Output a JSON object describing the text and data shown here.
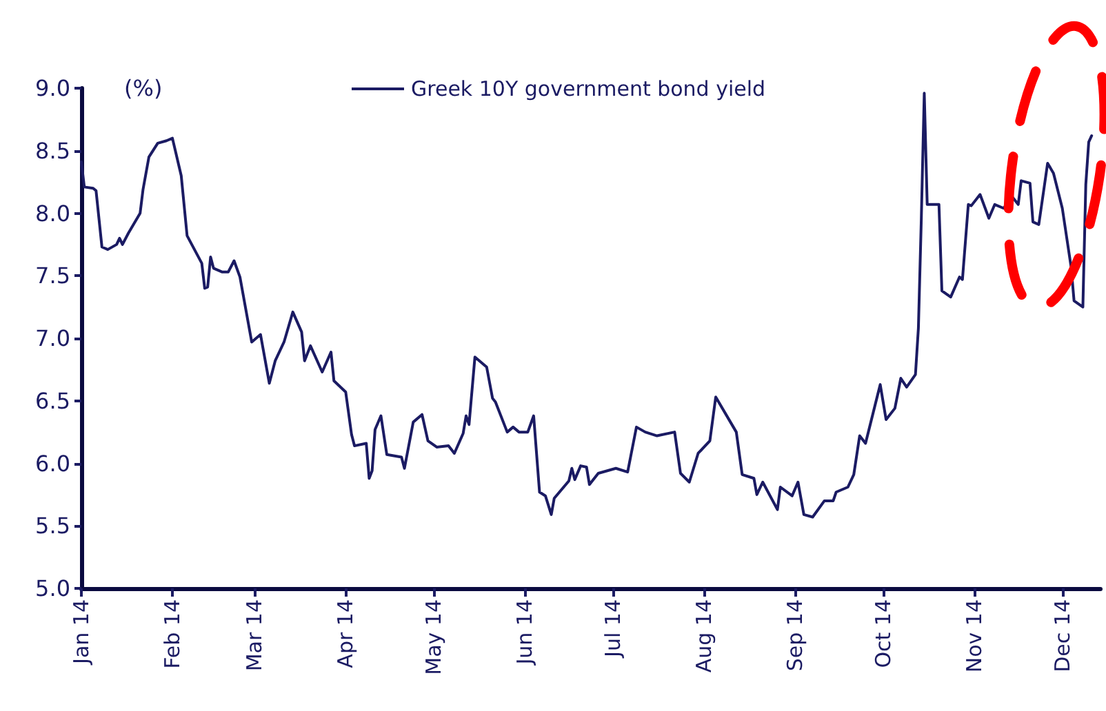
{
  "chart_data": {
    "type": "line",
    "ylabel": "(%)",
    "legend": "top",
    "grid": false,
    "marker": "none",
    "line_style": "solid",
    "xlim": [
      "2014-01-01",
      "2014-12-14"
    ],
    "xticks": [
      {
        "value": "2014-01-01",
        "label": "Jan 14"
      },
      {
        "value": "2014-02-01",
        "label": "Feb 14"
      },
      {
        "value": "2014-03-01",
        "label": "Mar 14"
      },
      {
        "value": "2014-04-01",
        "label": "Apr 14"
      },
      {
        "value": "2014-05-01",
        "label": "May 14"
      },
      {
        "value": "2014-06-01",
        "label": "Jun 14"
      },
      {
        "value": "2014-07-01",
        "label": "Jul 14"
      },
      {
        "value": "2014-08-01",
        "label": "Aug 14"
      },
      {
        "value": "2014-09-01",
        "label": "Sep 14"
      },
      {
        "value": "2014-10-01",
        "label": "Oct 14"
      },
      {
        "value": "2014-11-01",
        "label": "Nov 14"
      },
      {
        "value": "2014-12-01",
        "label": "Dec 14"
      }
    ],
    "ylim": [
      5,
      9
    ],
    "yticks": [
      {
        "value": 5,
        "label": "5.0"
      },
      {
        "value": 5.5,
        "label": "5.5"
      },
      {
        "value": 6,
        "label": "6.0"
      },
      {
        "value": 6.5,
        "label": "6.5"
      },
      {
        "value": 7,
        "label": "7.0"
      },
      {
        "value": 7.5,
        "label": "7.5"
      },
      {
        "value": 8,
        "label": "8.0"
      },
      {
        "value": 8.5,
        "label": "8.5"
      },
      {
        "value": 9,
        "label": "9.0"
      }
    ],
    "x": [
      "2014-01-01",
      "2014-01-02",
      "2014-01-05",
      "2014-01-06",
      "2014-01-08",
      "2014-01-10",
      "2014-01-13",
      "2014-01-14",
      "2014-01-15",
      "2014-01-17",
      "2014-01-21",
      "2014-01-22",
      "2014-01-24",
      "2014-01-27",
      "2014-01-30",
      "2014-02-01",
      "2014-02-04",
      "2014-02-06",
      "2014-02-11",
      "2014-02-12",
      "2014-02-13",
      "2014-02-14",
      "2014-02-15",
      "2014-02-18",
      "2014-02-20",
      "2014-02-22",
      "2014-02-24",
      "2014-02-28",
      "2014-03-03",
      "2014-03-06",
      "2014-03-08",
      "2014-03-11",
      "2014-03-14",
      "2014-03-17",
      "2014-03-18",
      "2014-03-20",
      "2014-03-24",
      "2014-03-27",
      "2014-03-28",
      "2014-04-01",
      "2014-04-03",
      "2014-04-04",
      "2014-04-08",
      "2014-04-09",
      "2014-04-10",
      "2014-04-11",
      "2014-04-13",
      "2014-04-15",
      "2014-04-20",
      "2014-04-21",
      "2014-04-24",
      "2014-04-27",
      "2014-04-29",
      "2014-05-02",
      "2014-05-06",
      "2014-05-08",
      "2014-05-11",
      "2014-05-12",
      "2014-05-13",
      "2014-05-15",
      "2014-05-19",
      "2014-05-21",
      "2014-05-22",
      "2014-05-26",
      "2014-05-28",
      "2014-05-30",
      "2014-06-02",
      "2014-06-04",
      "2014-06-06",
      "2014-06-08",
      "2014-06-10",
      "2014-06-11",
      "2014-06-16",
      "2014-06-17",
      "2014-06-18",
      "2014-06-20",
      "2014-06-22",
      "2014-06-23",
      "2014-06-26",
      "2014-07-02",
      "2014-07-06",
      "2014-07-09",
      "2014-07-12",
      "2014-07-16",
      "2014-07-22",
      "2014-07-24",
      "2014-07-27",
      "2014-07-30",
      "2014-08-03",
      "2014-08-05",
      "2014-08-11",
      "2014-08-12",
      "2014-08-14",
      "2014-08-18",
      "2014-08-19",
      "2014-08-21",
      "2014-08-26",
      "2014-08-27",
      "2014-08-31",
      "2014-09-02",
      "2014-09-04",
      "2014-09-07",
      "2014-09-11",
      "2014-09-14",
      "2014-09-15",
      "2014-09-19",
      "2014-09-21",
      "2014-09-23",
      "2014-09-25",
      "2014-09-30",
      "2014-10-01",
      "2014-10-02",
      "2014-10-05",
      "2014-10-07",
      "2014-10-09",
      "2014-10-12",
      "2014-10-13",
      "2014-10-14",
      "2014-10-15",
      "2014-10-16",
      "2014-10-20",
      "2014-10-21",
      "2014-10-24",
      "2014-10-27",
      "2014-10-28",
      "2014-10-30",
      "2014-10-31",
      "2014-11-03",
      "2014-11-06",
      "2014-11-08",
      "2014-11-11",
      "2014-11-14",
      "2014-11-16",
      "2014-11-17",
      "2014-11-20",
      "2014-11-21",
      "2014-11-23",
      "2014-11-26",
      "2014-11-28",
      "2014-12-01",
      "2014-12-04",
      "2014-12-05",
      "2014-12-08",
      "2014-12-09",
      "2014-12-10",
      "2014-12-11"
    ],
    "series": [
      {
        "name": "Greek 10Y government bond yield",
        "color": "#1b1b63",
        "values": [
          8.41,
          8.21,
          8.2,
          8.18,
          7.73,
          7.71,
          7.75,
          7.8,
          7.75,
          7.84,
          8.0,
          8.19,
          8.45,
          8.56,
          8.58,
          8.6,
          8.3,
          7.82,
          7.6,
          7.4,
          7.41,
          7.65,
          7.56,
          7.53,
          7.53,
          7.62,
          7.49,
          6.97,
          7.03,
          6.64,
          6.82,
          6.97,
          7.21,
          7.05,
          6.82,
          6.94,
          6.73,
          6.89,
          6.66,
          6.57,
          6.23,
          6.14,
          6.16,
          5.88,
          5.94,
          6.27,
          6.38,
          6.07,
          6.05,
          5.96,
          6.33,
          6.39,
          6.18,
          6.13,
          6.14,
          6.08,
          6.24,
          6.38,
          6.31,
          6.85,
          6.77,
          6.52,
          6.49,
          6.25,
          6.29,
          6.25,
          6.25,
          6.38,
          5.77,
          5.74,
          5.59,
          5.72,
          5.86,
          5.96,
          5.87,
          5.98,
          5.97,
          5.83,
          5.92,
          5.96,
          5.93,
          6.29,
          6.25,
          6.22,
          6.25,
          5.92,
          5.85,
          6.08,
          6.18,
          6.53,
          6.29,
          6.25,
          5.91,
          5.88,
          5.75,
          5.85,
          5.63,
          5.81,
          5.74,
          5.85,
          5.59,
          5.57,
          5.7,
          5.7,
          5.77,
          5.81,
          5.91,
          6.22,
          6.16,
          6.63,
          6.49,
          6.35,
          6.44,
          6.68,
          6.61,
          6.71,
          7.08,
          7.96,
          8.96,
          8.07,
          8.07,
          7.38,
          7.33,
          7.49,
          7.47,
          8.07,
          8.06,
          8.15,
          7.96,
          8.07,
          8.04,
          8.13,
          8.07,
          8.26,
          8.24,
          7.93,
          7.91,
          8.4,
          8.32,
          8.04,
          7.57,
          7.3,
          7.25,
          8.23,
          8.57,
          8.62
        ]
      }
    ]
  }
}
